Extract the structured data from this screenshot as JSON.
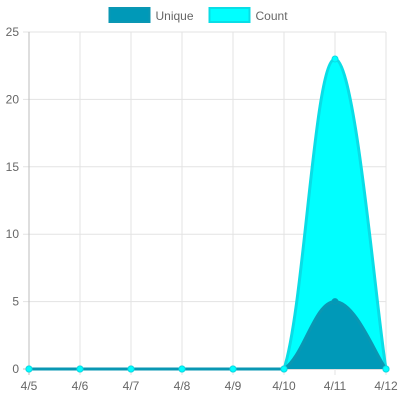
{
  "chart_data": {
    "type": "area",
    "categories": [
      "4/5",
      "4/6",
      "4/7",
      "4/8",
      "4/9",
      "4/10",
      "4/11",
      "4/12"
    ],
    "series": [
      {
        "name": "Unique",
        "values": [
          0,
          0,
          0,
          0,
          0,
          0,
          5,
          0
        ],
        "color": "#0099B8",
        "border": "#0A97B3"
      },
      {
        "name": "Count",
        "values": [
          0,
          0,
          0,
          0,
          0,
          0,
          23,
          0
        ],
        "color": "#00FFFF",
        "border": "#0ADDE6"
      }
    ],
    "ylim": [
      0,
      25
    ],
    "yticks": [
      "0",
      "5",
      "10",
      "15",
      "20",
      "25"
    ],
    "grid": true,
    "legend": "top-center"
  }
}
